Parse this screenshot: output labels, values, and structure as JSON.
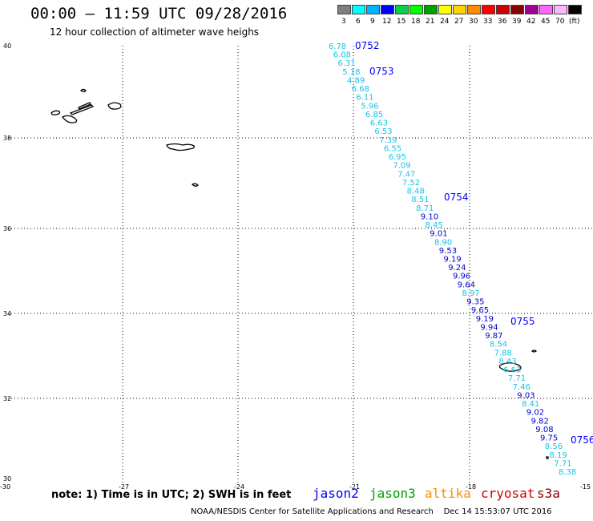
{
  "title": "00:00 – 11:59 UTC 09/28/2016",
  "subtitle": "12 hour collection of altimeter wave heighs",
  "colorbar": {
    "unit": "(ft)",
    "items": [
      {
        "label": "3",
        "color": "#7f7f7f"
      },
      {
        "label": "6",
        "color": "#00ffff"
      },
      {
        "label": "9",
        "color": "#00b4ff"
      },
      {
        "label": "12",
        "color": "#0000ff"
      },
      {
        "label": "15",
        "color": "#00d24a"
      },
      {
        "label": "18",
        "color": "#00ff00"
      },
      {
        "label": "21",
        "color": "#00a000"
      },
      {
        "label": "24",
        "color": "#ffff00"
      },
      {
        "label": "27",
        "color": "#ffd200"
      },
      {
        "label": "30",
        "color": "#ff8c00"
      },
      {
        "label": "33",
        "color": "#ff0000"
      },
      {
        "label": "36",
        "color": "#c80000"
      },
      {
        "label": "39",
        "color": "#8b0000"
      },
      {
        "label": "42",
        "color": "#a00096"
      },
      {
        "label": "45",
        "color": "#ff64ff"
      },
      {
        "label": "70",
        "color": "#ffb4ff"
      },
      {
        "label": "",
        "color": "#000000"
      }
    ]
  },
  "map": {
    "lon_ticks": [
      "-30",
      "-27",
      "-24",
      "-21",
      "-18",
      "-15"
    ],
    "lat_ticks": [
      "30",
      "32",
      "34",
      "36",
      "38",
      "40"
    ],
    "colors": {
      "light": "#19c3e6",
      "dark": "#0000c8",
      "time": "#0000ff"
    },
    "time_labels": [
      "0752",
      "0753",
      "0754",
      "0755",
      "0756"
    ],
    "observations": [
      {
        "value": "6.78",
        "shade": "light"
      },
      {
        "value": "6.08",
        "shade": "light"
      },
      {
        "value": "6.31",
        "shade": "light"
      },
      {
        "value": "5.18",
        "shade": "light"
      },
      {
        "value": "4.89",
        "shade": "light"
      },
      {
        "value": "6.68",
        "shade": "light"
      },
      {
        "value": "6.11",
        "shade": "light"
      },
      {
        "value": "5.96",
        "shade": "light"
      },
      {
        "value": "6.85",
        "shade": "light"
      },
      {
        "value": "6.63",
        "shade": "light"
      },
      {
        "value": "6.53",
        "shade": "light"
      },
      {
        "value": "7.39",
        "shade": "light"
      },
      {
        "value": "6.55",
        "shade": "light"
      },
      {
        "value": "6.95",
        "shade": "light"
      },
      {
        "value": "7.09",
        "shade": "light"
      },
      {
        "value": "7.47",
        "shade": "light"
      },
      {
        "value": "7.52",
        "shade": "light"
      },
      {
        "value": "8.48",
        "shade": "light"
      },
      {
        "value": "8.51",
        "shade": "light"
      },
      {
        "value": "8.71",
        "shade": "light"
      },
      {
        "value": "9.10",
        "shade": "dark"
      },
      {
        "value": "8.45",
        "shade": "light"
      },
      {
        "value": "9.01",
        "shade": "dark"
      },
      {
        "value": "8.90",
        "shade": "light"
      },
      {
        "value": "9.53",
        "shade": "dark"
      },
      {
        "value": "9.19",
        "shade": "dark"
      },
      {
        "value": "9.24",
        "shade": "dark"
      },
      {
        "value": "9.96",
        "shade": "dark"
      },
      {
        "value": "9.64",
        "shade": "dark"
      },
      {
        "value": "8.97",
        "shade": "light"
      },
      {
        "value": "9.35",
        "shade": "dark"
      },
      {
        "value": "9.65",
        "shade": "dark"
      },
      {
        "value": "9.19",
        "shade": "dark"
      },
      {
        "value": "9.94",
        "shade": "dark"
      },
      {
        "value": "9.87",
        "shade": "dark"
      },
      {
        "value": "8.54",
        "shade": "light"
      },
      {
        "value": "7.88",
        "shade": "light"
      },
      {
        "value": "8.43",
        "shade": "light"
      },
      {
        "value": "6.63",
        "shade": "light"
      },
      {
        "value": "7.71",
        "shade": "light"
      },
      {
        "value": "7.46",
        "shade": "light"
      },
      {
        "value": "9.03",
        "shade": "dark"
      },
      {
        "value": "8.41",
        "shade": "light"
      },
      {
        "value": "9.02",
        "shade": "dark"
      },
      {
        "value": "9.82",
        "shade": "dark"
      },
      {
        "value": "9.08",
        "shade": "dark"
      },
      {
        "value": "9.75",
        "shade": "dark"
      },
      {
        "value": "8.56",
        "shade": "light"
      },
      {
        "value": "8.19",
        "shade": "light"
      },
      {
        "value": "7.71",
        "shade": "light"
      },
      {
        "value": "8.38",
        "shade": "light"
      }
    ]
  },
  "note": "note:  1) Time is in UTC;  2) SWH is in feet",
  "satellites": [
    {
      "name": "jason2",
      "color": "#0000ff"
    },
    {
      "name": "jason3",
      "color": "#00a000"
    },
    {
      "name": "altika",
      "color": "#ff8c00"
    },
    {
      "name": "cryosat",
      "color": "#d20000"
    },
    {
      "name": "s3a",
      "color": "#8b0000"
    }
  ],
  "footer": "NOAA/NESDIS Center for Satellite Applications and Research    Dec 14 15:53:07 UTC 2016"
}
